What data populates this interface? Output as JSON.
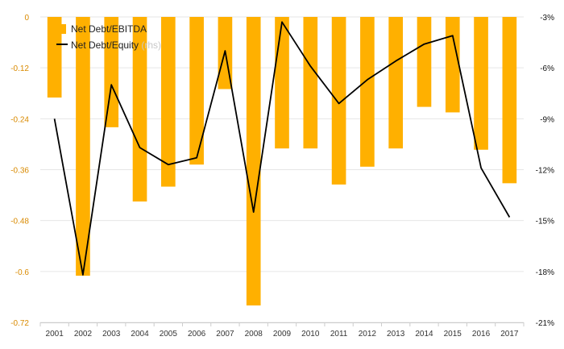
{
  "chart_data": {
    "type": "bar",
    "categories": [
      "2001",
      "2002",
      "2003",
      "2004",
      "2005",
      "2006",
      "2007",
      "2008",
      "2009",
      "2010",
      "2011",
      "2012",
      "2013",
      "2014",
      "2015",
      "2016",
      "2017"
    ],
    "series": [
      {
        "name": "Net Debt/EBITDA",
        "type": "bar",
        "axis": "left",
        "color": "#FFB000",
        "values": [
          -0.19,
          -0.61,
          -0.26,
          -0.435,
          -0.4,
          -0.348,
          -0.17,
          -0.68,
          -0.31,
          -0.31,
          -0.395,
          -0.353,
          -0.31,
          -0.212,
          -0.225,
          -0.313,
          -0.392
        ]
      },
      {
        "name": "Net Debt/Equity",
        "name_suffix": " (rhs)",
        "type": "line",
        "axis": "right",
        "color": "#000000",
        "values": [
          -9.0,
          -18.2,
          -7.0,
          -10.7,
          -11.7,
          -11.3,
          -5.0,
          -14.5,
          -3.3,
          -5.9,
          -8.1,
          -6.7,
          -5.6,
          -4.6,
          -4.1,
          -11.9,
          -14.8
        ]
      }
    ],
    "left_axis": {
      "ylim": [
        -0.72,
        0
      ],
      "ticks": [
        0,
        -0.12,
        -0.24,
        -0.36,
        -0.48,
        -0.6,
        -0.72
      ],
      "tick_labels": [
        "0",
        "-0.12",
        "-0.24",
        "-0.36",
        "-0.48",
        "-0.6",
        "-0.72"
      ],
      "color": "#d98a00"
    },
    "right_axis": {
      "ylim": [
        -21,
        -3
      ],
      "ticks": [
        -3,
        -6,
        -9,
        -12,
        -15,
        -18,
        -21
      ],
      "tick_labels": [
        "-3%",
        "-6%",
        "-9%",
        "-12%",
        "-15%",
        "-18%",
        "-21%"
      ]
    },
    "grid": true,
    "legend_position": "top-left"
  }
}
